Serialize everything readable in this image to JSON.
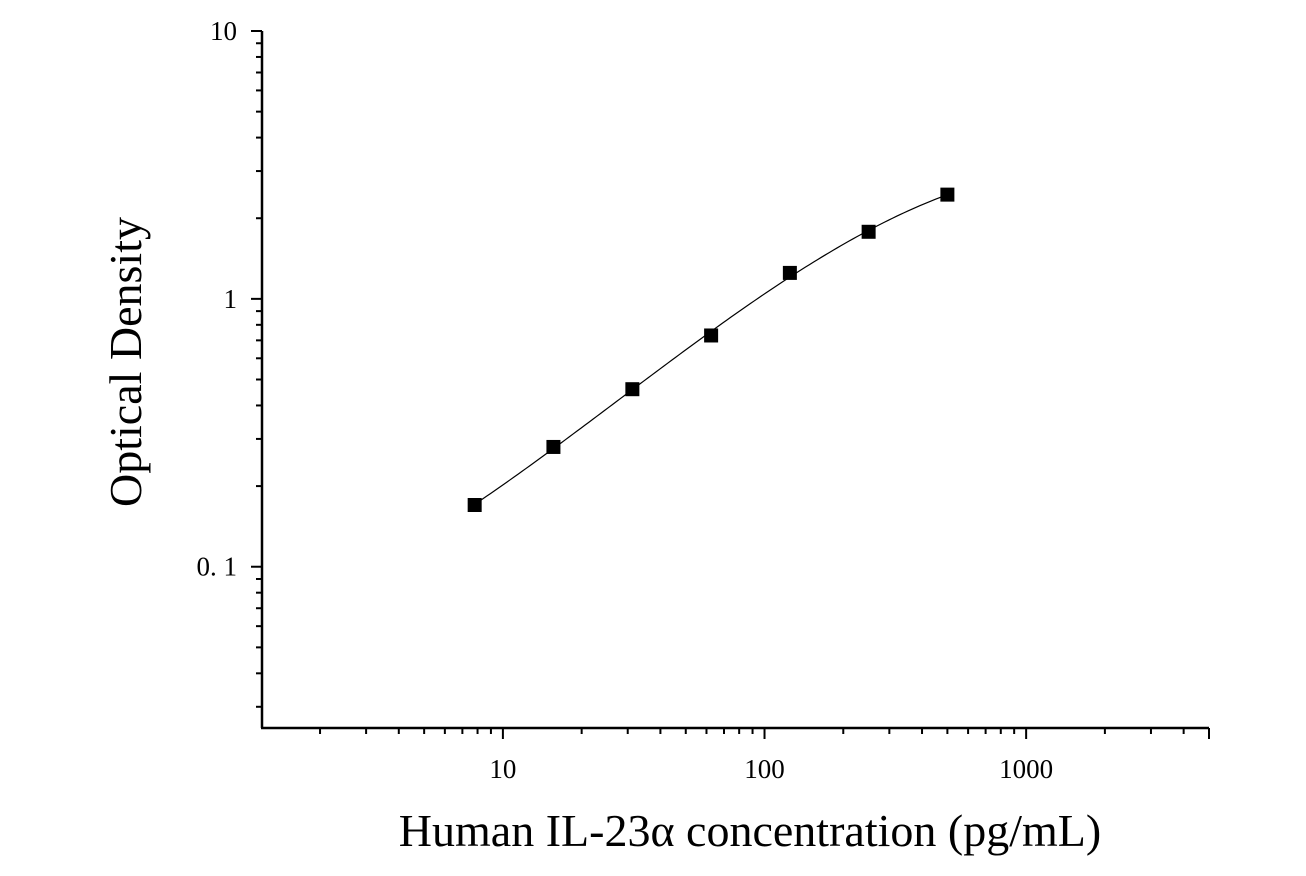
{
  "chart_data": {
    "type": "scatter",
    "title": "",
    "xlabel": "Human IL-23α concentration (pg/mL)",
    "ylabel": "Optical Density",
    "x_scale": "log",
    "y_scale": "log",
    "xlim": [
      1.2,
      5000
    ],
    "ylim": [
      0.025,
      10
    ],
    "x_tick_labels": [
      "10",
      "100",
      "1000"
    ],
    "y_tick_labels": [
      "10",
      "1",
      "0. 1"
    ],
    "grid": false,
    "legend": "none",
    "marker": "square",
    "fit_curve": true,
    "colors": {
      "marker": "#000000",
      "line": "#000000",
      "axis": "#000000"
    },
    "series": [
      {
        "x": [
          7.8,
          15.6,
          31.25,
          62.5,
          125,
          250,
          500
        ],
        "y": [
          0.17,
          0.28,
          0.46,
          0.73,
          1.25,
          1.78,
          2.45
        ]
      }
    ]
  }
}
